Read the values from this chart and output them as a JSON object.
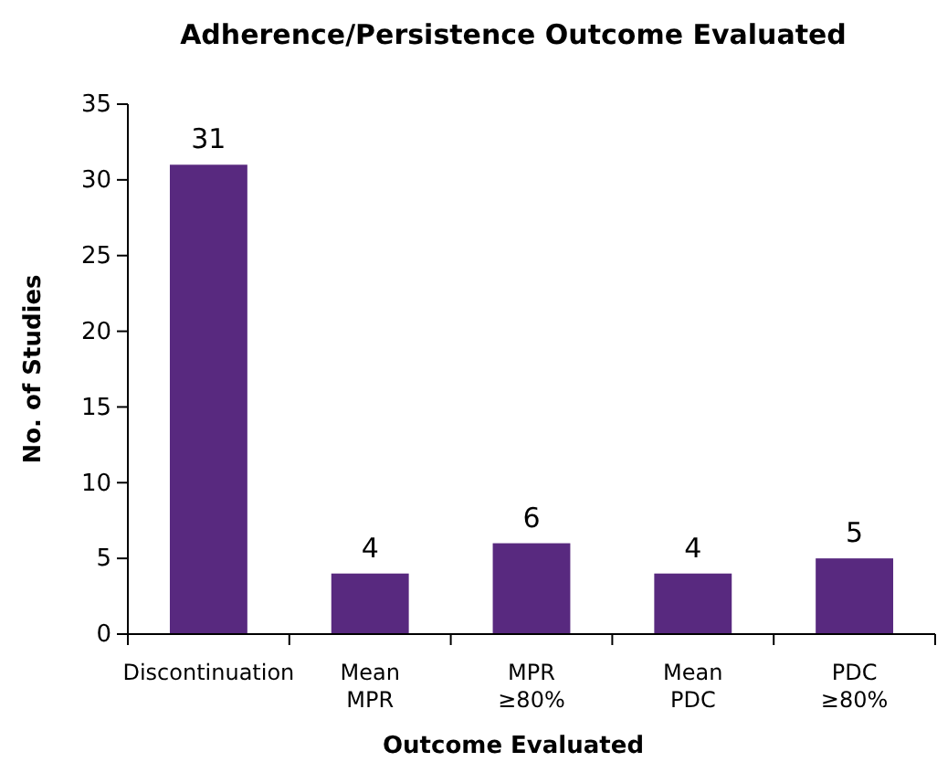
{
  "chart_data": {
    "type": "bar",
    "title": "Adherence/Persistence Outcome Evaluated",
    "xlabel": "Outcome Evaluated",
    "ylabel": "No. of Studies",
    "categories": [
      "Discontinuation",
      "Mean\nMPR",
      "MPR\n≥80%",
      "Mean\nPDC",
      "PDC\n≥80%"
    ],
    "values": [
      31,
      4,
      6,
      4,
      5
    ],
    "color": "#58297f",
    "data_labels": true,
    "ylim": [
      0,
      35
    ],
    "yticks": [
      0,
      5,
      10,
      15,
      20,
      25,
      30,
      35
    ],
    "grid": false
  }
}
